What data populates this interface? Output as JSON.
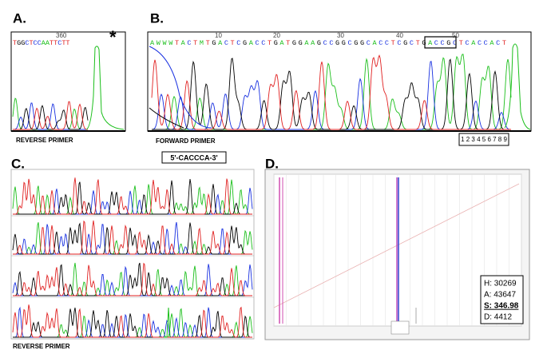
{
  "panels": [
    {
      "label": "A.",
      "sequence": "TGGCTCCAATTCTT",
      "position": "360",
      "marker": "*",
      "caption": "REVERSE PRIMER"
    },
    {
      "label": "B.",
      "sequence": "AWWWTACTMTGACTCGACCTGATGGAAGCCGGCGGCACCTCGCTGACCGCTCACCACT",
      "positions": [
        "10",
        "20",
        "30",
        "40",
        "50"
      ],
      "caption": "FORWARD PRIMER",
      "index_box": "1 2 3 4 5 6 7 8 9"
    },
    {
      "label": "C.",
      "motif": "5'-CACCCA-3'",
      "caption": "REVERSE PRIMER"
    },
    {
      "label": "D.",
      "stats": [
        "H: 30269",
        "A: 43647",
        "S: 346.98",
        "D: 4412"
      ]
    }
  ]
}
